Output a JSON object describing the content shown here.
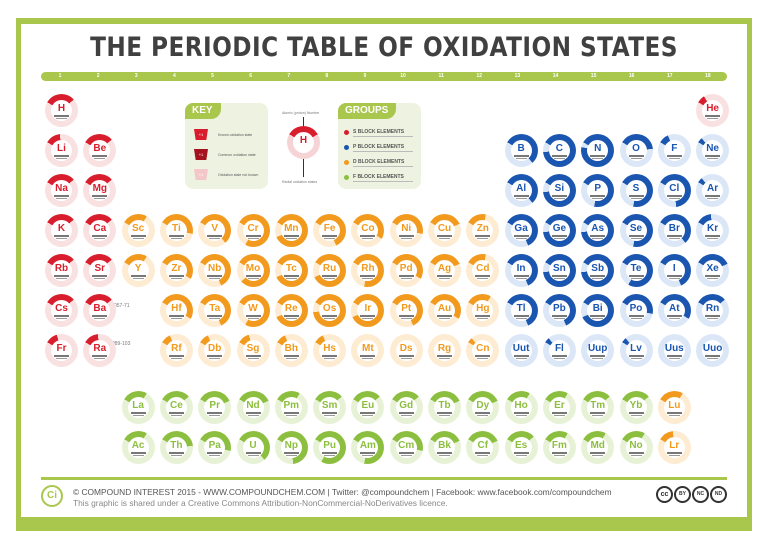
{
  "title": "THE PERIODIC TABLE OF OXIDATION STATES",
  "group_numbers": [
    "1",
    "2",
    "3",
    "4",
    "5",
    "6",
    "7",
    "8",
    "9",
    "10",
    "11",
    "12",
    "13",
    "14",
    "15",
    "16",
    "17",
    "18"
  ],
  "colors": {
    "frame": "#a9c64d",
    "s_block": "#d81e2c",
    "p_block": "#1a56b0",
    "d_block": "#f29a1d",
    "f_block": "#8cbf3f"
  },
  "key": {
    "label": "KEY",
    "items": [
      {
        "swatch": "+1",
        "label": "Known oxidation state"
      },
      {
        "swatch": "+1",
        "label": "Common oxidation state"
      },
      {
        "swatch": "+1",
        "label": "Oxidation state not known"
      }
    ]
  },
  "demo": {
    "top_label": "Atomic (proton) Number",
    "symbol": "H",
    "bottom_label": "Radial oxidation states"
  },
  "groups": {
    "label": "GROUPS",
    "items": [
      {
        "name": "S BLOCK ELEMENTS",
        "color": "#d81e2c"
      },
      {
        "name": "P BLOCK ELEMENTS",
        "color": "#1a56b0"
      },
      {
        "name": "D BLOCK ELEMENTS",
        "color": "#f29a1d"
      },
      {
        "name": "F BLOCK ELEMENTS",
        "color": "#8cbf3f"
      }
    ]
  },
  "placeholders": {
    "lanthanides": "057-71",
    "actinides": "089-103"
  },
  "elements": [
    {
      "s": "H",
      "b": "s",
      "c": 1,
      "r": 1,
      "f": 0.3
    },
    {
      "s": "He",
      "b": "s",
      "c": 18,
      "r": 1,
      "f": 0.08
    },
    {
      "s": "Li",
      "b": "s",
      "c": 1,
      "r": 2,
      "f": 0.15
    },
    {
      "s": "Be",
      "b": "s",
      "c": 2,
      "r": 2,
      "f": 0.3
    },
    {
      "s": "B",
      "b": "p",
      "c": 13,
      "r": 2,
      "f": 0.55
    },
    {
      "s": "C",
      "b": "p",
      "c": 14,
      "r": 2,
      "f": 0.9
    },
    {
      "s": "N",
      "b": "p",
      "c": 15,
      "r": 2,
      "f": 0.95
    },
    {
      "s": "O",
      "b": "p",
      "c": 16,
      "r": 2,
      "f": 0.4
    },
    {
      "s": "F",
      "b": "p",
      "c": 17,
      "r": 2,
      "f": 0.1
    },
    {
      "s": "Ne",
      "b": "p",
      "c": 18,
      "r": 2,
      "f": 0.05
    },
    {
      "s": "Na",
      "b": "s",
      "c": 1,
      "r": 3,
      "f": 0.3
    },
    {
      "s": "Mg",
      "b": "s",
      "c": 2,
      "r": 3,
      "f": 0.3
    },
    {
      "s": "Al",
      "b": "p",
      "c": 13,
      "r": 3,
      "f": 0.55
    },
    {
      "s": "Si",
      "b": "p",
      "c": 14,
      "r": 3,
      "f": 0.9
    },
    {
      "s": "P",
      "b": "p",
      "c": 15,
      "r": 3,
      "f": 0.7
    },
    {
      "s": "S",
      "b": "p",
      "c": 16,
      "r": 3,
      "f": 0.7
    },
    {
      "s": "Cl",
      "b": "p",
      "c": 17,
      "r": 3,
      "f": 0.65
    },
    {
      "s": "Ar",
      "b": "p",
      "c": 18,
      "r": 3,
      "f": 0.05
    },
    {
      "s": "K",
      "b": "s",
      "c": 1,
      "r": 4,
      "f": 0.3
    },
    {
      "s": "Ca",
      "b": "s",
      "c": 2,
      "r": 4,
      "f": 0.3
    },
    {
      "s": "Sc",
      "b": "d",
      "c": 3,
      "r": 4,
      "f": 0.25
    },
    {
      "s": "Ti",
      "b": "d",
      "c": 4,
      "r": 4,
      "f": 0.45
    },
    {
      "s": "V",
      "b": "d",
      "c": 5,
      "r": 4,
      "f": 0.55
    },
    {
      "s": "Cr",
      "b": "d",
      "c": 6,
      "r": 4,
      "f": 0.75
    },
    {
      "s": "Mn",
      "b": "d",
      "c": 7,
      "r": 4,
      "f": 0.85
    },
    {
      "s": "Fe",
      "b": "d",
      "c": 8,
      "r": 4,
      "f": 0.6
    },
    {
      "s": "Co",
      "b": "d",
      "c": 9,
      "r": 4,
      "f": 0.5
    },
    {
      "s": "Ni",
      "b": "d",
      "c": 10,
      "r": 4,
      "f": 0.45
    },
    {
      "s": "Cu",
      "b": "d",
      "c": 11,
      "r": 4,
      "f": 0.35
    },
    {
      "s": "Zn",
      "b": "d",
      "c": 12,
      "r": 4,
      "f": 0.2
    },
    {
      "s": "Ga",
      "b": "p",
      "c": 13,
      "r": 4,
      "f": 0.6
    },
    {
      "s": "Ge",
      "b": "p",
      "c": 14,
      "r": 4,
      "f": 0.9
    },
    {
      "s": "As",
      "b": "p",
      "c": 15,
      "r": 4,
      "f": 0.9
    },
    {
      "s": "Se",
      "b": "p",
      "c": 16,
      "r": 4,
      "f": 0.7
    },
    {
      "s": "Br",
      "b": "p",
      "c": 17,
      "r": 4,
      "f": 0.55
    },
    {
      "s": "Kr",
      "b": "p",
      "c": 18,
      "r": 4,
      "f": 0.15
    },
    {
      "s": "Rb",
      "b": "s",
      "c": 1,
      "r": 5,
      "f": 0.3
    },
    {
      "s": "Sr",
      "b": "s",
      "c": 2,
      "r": 5,
      "f": 0.3
    },
    {
      "s": "Y",
      "b": "d",
      "c": 3,
      "r": 5,
      "f": 0.25
    },
    {
      "s": "Zr",
      "b": "d",
      "c": 4,
      "r": 5,
      "f": 0.5
    },
    {
      "s": "Nb",
      "b": "d",
      "c": 5,
      "r": 5,
      "f": 0.6
    },
    {
      "s": "Mo",
      "b": "d",
      "c": 6,
      "r": 5,
      "f": 0.8
    },
    {
      "s": "Tc",
      "b": "d",
      "c": 7,
      "r": 5,
      "f": 0.85
    },
    {
      "s": "Ru",
      "b": "d",
      "c": 8,
      "r": 5,
      "f": 0.85
    },
    {
      "s": "Rh",
      "b": "d",
      "c": 9,
      "r": 5,
      "f": 0.7
    },
    {
      "s": "Pd",
      "b": "d",
      "c": 10,
      "r": 5,
      "f": 0.5
    },
    {
      "s": "Ag",
      "b": "d",
      "c": 11,
      "r": 5,
      "f": 0.35
    },
    {
      "s": "Cd",
      "b": "d",
      "c": 12,
      "r": 5,
      "f": 0.2
    },
    {
      "s": "In",
      "b": "p",
      "c": 13,
      "r": 5,
      "f": 0.6
    },
    {
      "s": "Sn",
      "b": "p",
      "c": 14,
      "r": 5,
      "f": 0.9
    },
    {
      "s": "Sb",
      "b": "p",
      "c": 15,
      "r": 5,
      "f": 0.9
    },
    {
      "s": "Te",
      "b": "p",
      "c": 16,
      "r": 5,
      "f": 0.75
    },
    {
      "s": "I",
      "b": "p",
      "c": 17,
      "r": 5,
      "f": 0.6
    },
    {
      "s": "Xe",
      "b": "p",
      "c": 18,
      "r": 5,
      "f": 0.35
    },
    {
      "s": "Cs",
      "b": "s",
      "c": 1,
      "r": 6,
      "f": 0.3
    },
    {
      "s": "Ba",
      "b": "s",
      "c": 2,
      "r": 6,
      "f": 0.3
    },
    {
      "s": "Hf",
      "b": "d",
      "c": 4,
      "r": 6,
      "f": 0.5
    },
    {
      "s": "Ta",
      "b": "d",
      "c": 5,
      "r": 6,
      "f": 0.6
    },
    {
      "s": "W",
      "b": "d",
      "c": 6,
      "r": 6,
      "f": 0.75
    },
    {
      "s": "Re",
      "b": "d",
      "c": 7,
      "r": 6,
      "f": 0.85
    },
    {
      "s": "Os",
      "b": "d",
      "c": 8,
      "r": 6,
      "f": 0.9
    },
    {
      "s": "Ir",
      "b": "d",
      "c": 9,
      "r": 6,
      "f": 0.85
    },
    {
      "s": "Pt",
      "b": "d",
      "c": 10,
      "r": 6,
      "f": 0.6
    },
    {
      "s": "Au",
      "b": "d",
      "c": 11,
      "r": 6,
      "f": 0.5
    },
    {
      "s": "Hg",
      "b": "d",
      "c": 12,
      "r": 6,
      "f": 0.25
    },
    {
      "s": "Tl",
      "b": "p",
      "c": 13,
      "r": 6,
      "f": 0.6
    },
    {
      "s": "Pb",
      "b": "p",
      "c": 14,
      "r": 6,
      "f": 0.6
    },
    {
      "s": "Bi",
      "b": "p",
      "c": 15,
      "r": 6,
      "f": 0.85
    },
    {
      "s": "Po",
      "b": "p",
      "c": 16,
      "r": 6,
      "f": 0.45
    },
    {
      "s": "At",
      "b": "p",
      "c": 17,
      "r": 6,
      "f": 0.5
    },
    {
      "s": "Rn",
      "b": "p",
      "c": 18,
      "r": 6,
      "f": 0.3
    },
    {
      "s": "Fr",
      "b": "s",
      "c": 1,
      "r": 7,
      "f": 0.12
    },
    {
      "s": "Ra",
      "b": "s",
      "c": 2,
      "r": 7,
      "f": 0.15
    },
    {
      "s": "Rf",
      "b": "d",
      "c": 4,
      "r": 7,
      "f": 0.1
    },
    {
      "s": "Db",
      "b": "d",
      "c": 5,
      "r": 7,
      "f": 0.1
    },
    {
      "s": "Sg",
      "b": "d",
      "c": 6,
      "r": 7,
      "f": 0.12
    },
    {
      "s": "Bh",
      "b": "d",
      "c": 7,
      "r": 7,
      "f": 0.1
    },
    {
      "s": "Hs",
      "b": "d",
      "c": 8,
      "r": 7,
      "f": 0.1
    },
    {
      "s": "Mt",
      "b": "d",
      "c": 9,
      "r": 7,
      "f": 0.0
    },
    {
      "s": "Ds",
      "b": "d",
      "c": 10,
      "r": 7,
      "f": 0.0
    },
    {
      "s": "Rg",
      "b": "d",
      "c": 11,
      "r": 7,
      "f": 0.0
    },
    {
      "s": "Cn",
      "b": "d",
      "c": 12,
      "r": 7,
      "f": 0.05
    },
    {
      "s": "Uut",
      "b": "p",
      "c": 13,
      "r": 7,
      "f": 0.0
    },
    {
      "s": "Fl",
      "b": "p",
      "c": 14,
      "r": 7,
      "f": 0.05
    },
    {
      "s": "Uup",
      "b": "p",
      "c": 15,
      "r": 7,
      "f": 0.0
    },
    {
      "s": "Lv",
      "b": "p",
      "c": 16,
      "r": 7,
      "f": 0.05
    },
    {
      "s": "Uus",
      "b": "p",
      "c": 17,
      "r": 7,
      "f": 0.0
    },
    {
      "s": "Uuo",
      "b": "p",
      "c": 18,
      "r": 7,
      "f": 0.0
    },
    {
      "s": "La",
      "b": "f",
      "c": 3,
      "r": 9,
      "f": 0.25
    },
    {
      "s": "Ce",
      "b": "f",
      "c": 4,
      "r": 9,
      "f": 0.3
    },
    {
      "s": "Pr",
      "b": "f",
      "c": 5,
      "r": 9,
      "f": 0.35
    },
    {
      "s": "Nd",
      "b": "f",
      "c": 6,
      "r": 9,
      "f": 0.35
    },
    {
      "s": "Pm",
      "b": "f",
      "c": 7,
      "r": 9,
      "f": 0.25
    },
    {
      "s": "Sm",
      "b": "f",
      "c": 8,
      "r": 9,
      "f": 0.3
    },
    {
      "s": "Eu",
      "b": "f",
      "c": 9,
      "r": 9,
      "f": 0.3
    },
    {
      "s": "Gd",
      "b": "f",
      "c": 10,
      "r": 9,
      "f": 0.3
    },
    {
      "s": "Tb",
      "b": "f",
      "c": 11,
      "r": 9,
      "f": 0.35
    },
    {
      "s": "Dy",
      "b": "f",
      "c": 12,
      "r": 9,
      "f": 0.35
    },
    {
      "s": "Ho",
      "b": "f",
      "c": 13,
      "r": 9,
      "f": 0.25
    },
    {
      "s": "Er",
      "b": "f",
      "c": 14,
      "r": 9,
      "f": 0.25
    },
    {
      "s": "Tm",
      "b": "f",
      "c": 15,
      "r": 9,
      "f": 0.3
    },
    {
      "s": "Yb",
      "b": "f",
      "c": 16,
      "r": 9,
      "f": 0.3
    },
    {
      "s": "Lu",
      "b": "d",
      "c": 17,
      "r": 9,
      "f": 0.25
    },
    {
      "s": "Ac",
      "b": "f",
      "c": 3,
      "r": 10,
      "f": 0.25
    },
    {
      "s": "Th",
      "b": "f",
      "c": 4,
      "r": 10,
      "f": 0.4
    },
    {
      "s": "Pa",
      "b": "f",
      "c": 5,
      "r": 10,
      "f": 0.45
    },
    {
      "s": "U",
      "b": "f",
      "c": 6,
      "r": 10,
      "f": 0.55
    },
    {
      "s": "Np",
      "b": "f",
      "c": 7,
      "r": 10,
      "f": 0.65
    },
    {
      "s": "Pu",
      "b": "f",
      "c": 8,
      "r": 10,
      "f": 0.75
    },
    {
      "s": "Am",
      "b": "f",
      "c": 9,
      "r": 10,
      "f": 0.7
    },
    {
      "s": "Cm",
      "b": "f",
      "c": 10,
      "r": 10,
      "f": 0.45
    },
    {
      "s": "Bk",
      "b": "f",
      "c": 11,
      "r": 10,
      "f": 0.35
    },
    {
      "s": "Cf",
      "b": "f",
      "c": 12,
      "r": 10,
      "f": 0.35
    },
    {
      "s": "Es",
      "b": "f",
      "c": 13,
      "r": 10,
      "f": 0.3
    },
    {
      "s": "Fm",
      "b": "f",
      "c": 14,
      "r": 10,
      "f": 0.25
    },
    {
      "s": "Md",
      "b": "f",
      "c": 15,
      "r": 10,
      "f": 0.25
    },
    {
      "s": "No",
      "b": "f",
      "c": 16,
      "r": 10,
      "f": 0.25
    },
    {
      "s": "Lr",
      "b": "d",
      "c": 17,
      "r": 10,
      "f": 0.15
    }
  ],
  "footer": {
    "logo": "Ci",
    "line1": "© COMPOUND INTEREST 2015 - WWW.COMPOUNDCHEM.COM | Twitter: @compoundchem | Facebook: www.facebook.com/compoundchem",
    "line2": "This graphic is shared under a Creative Commons Attribution-NonCommercial-NoDerivatives licence.",
    "cc_icons": [
      "cc",
      "BY",
      "NC",
      "ND"
    ]
  }
}
